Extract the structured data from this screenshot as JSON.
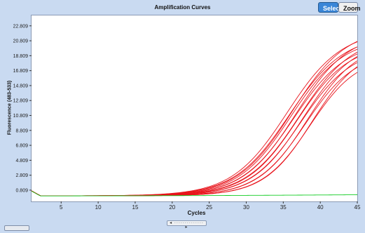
{
  "chart_data": {
    "type": "line",
    "title": "Amplification Curves",
    "xlabel": "Cycles",
    "ylabel": "Fluorescence (483-533)",
    "xlim": [
      1,
      45
    ],
    "ylim": [
      -0.7,
      24.2
    ],
    "x_ticks": [
      5,
      10,
      15,
      20,
      25,
      30,
      35,
      40,
      45
    ],
    "y_ticks": [
      0.809,
      2.809,
      4.809,
      6.809,
      8.809,
      10.809,
      12.809,
      14.809,
      16.809,
      18.809,
      20.809,
      22.809
    ],
    "y_tick_labels": [
      "0.809",
      "2.809",
      "4.809",
      "6.809",
      "8.809",
      "10.809",
      "12.809",
      "14.809",
      "16.809",
      "18.809",
      "20.809",
      "22.809"
    ],
    "grid": false,
    "series": [
      {
        "color": "#e8141c",
        "baseline": 0.05,
        "plateau": 22.2,
        "midpoint": 35.5,
        "slope": 0.27
      },
      {
        "color": "#e8141c",
        "baseline": 0.05,
        "plateau": 21.6,
        "midpoint": 35.8,
        "slope": 0.27
      },
      {
        "color": "#e8141c",
        "baseline": 0.05,
        "plateau": 21.2,
        "midpoint": 36.0,
        "slope": 0.28
      },
      {
        "color": "#e8141c",
        "baseline": 0.05,
        "plateau": 22.6,
        "midpoint": 36.2,
        "slope": 0.27
      },
      {
        "color": "#e8141c",
        "baseline": 0.05,
        "plateau": 20.7,
        "midpoint": 36.4,
        "slope": 0.28
      },
      {
        "color": "#e8141c",
        "baseline": 0.05,
        "plateau": 21.9,
        "midpoint": 36.7,
        "slope": 0.28
      },
      {
        "color": "#e8141c",
        "baseline": 0.05,
        "plateau": 20.3,
        "midpoint": 36.9,
        "slope": 0.29
      },
      {
        "color": "#e8141c",
        "baseline": 0.05,
        "plateau": 21.4,
        "midpoint": 37.2,
        "slope": 0.28
      },
      {
        "color": "#e8141c",
        "baseline": 0.05,
        "plateau": 19.8,
        "midpoint": 37.4,
        "slope": 0.29
      },
      {
        "color": "#e8141c",
        "baseline": 0.05,
        "plateau": 20.9,
        "midpoint": 37.7,
        "slope": 0.29
      },
      {
        "color": "#e8141c",
        "baseline": 0.05,
        "plateau": 19.3,
        "midpoint": 38.0,
        "slope": 0.3
      },
      {
        "color": "#e8141c",
        "baseline": 0.05,
        "plateau": 20.5,
        "midpoint": 38.3,
        "slope": 0.3
      },
      {
        "color": "#e8141c",
        "baseline": 0.05,
        "plateau": 18.8,
        "midpoint": 38.6,
        "slope": 0.31
      },
      {
        "color": "#e8141c",
        "baseline": 0.05,
        "plateau": 19.9,
        "midpoint": 38.9,
        "slope": 0.31
      },
      {
        "color": "#11cc22",
        "baseline": 0.0,
        "plateau": 0.6,
        "midpoint": 60,
        "slope": 0.05
      }
    ]
  },
  "toolbar": {
    "select_label": "Select",
    "zoom_label": "Zoom"
  },
  "scrollbar": {
    "label": "◂ ·············· ▸"
  }
}
